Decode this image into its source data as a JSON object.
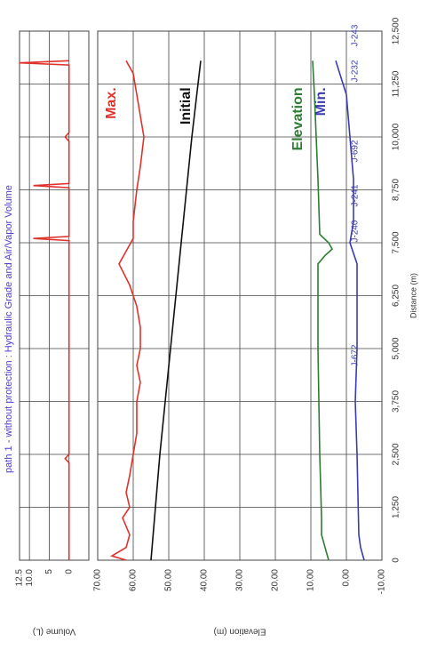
{
  "chart_data": [
    {
      "type": "line",
      "title": "path 1 - without protection : Hydraulic Grade and Air/Vapor Volume",
      "ylabel": "Volume (L)",
      "xlim": [
        0,
        12500
      ],
      "xticks": [
        0,
        1250,
        2500,
        3750,
        5000,
        6250,
        7500,
        8750,
        10000,
        11250,
        12500
      ],
      "ylim": [
        -5,
        12.5
      ],
      "yticks": [
        0,
        5,
        {
          "value": 10,
          "label": "10.0"
        },
        12.5
      ],
      "grid": true,
      "series": [
        {
          "color": "#e0322b",
          "x": [
            0,
            2300,
            2400,
            2500,
            7550,
            7600,
            7650,
            8800,
            8850,
            8900,
            9900,
            10000,
            10100,
            11700,
            11750,
            11800
          ],
          "values": [
            0,
            0,
            1,
            0,
            0,
            9,
            0,
            0,
            9,
            0,
            0,
            1,
            0,
            0,
            12.5,
            0
          ]
        }
      ]
    },
    {
      "type": "line",
      "ylabel": "Elevation (m)",
      "xlabel": "Distance (m)",
      "xlim": [
        0,
        12500
      ],
      "xticks": [
        0,
        {
          "value": 1250,
          "label": "1,250"
        },
        {
          "value": 2500,
          "label": "2,500"
        },
        {
          "value": 3750,
          "label": "3,750"
        },
        {
          "value": 5000,
          "label": "5,000"
        },
        {
          "value": 6250,
          "label": "6,250"
        },
        {
          "value": 7500,
          "label": "7,500"
        },
        {
          "value": 8750,
          "label": "8,750"
        },
        {
          "value": 10000,
          "label": "10,000"
        },
        {
          "value": 11250,
          "label": "11,250"
        },
        {
          "value": 12500,
          "label": "12,500"
        }
      ],
      "ylim": [
        -10,
        70
      ],
      "yticks": [
        {
          "value": -10,
          "label": "-10.00"
        },
        {
          "value": 0,
          "label": "0.00"
        },
        {
          "value": 10,
          "label": "10.00"
        },
        {
          "value": 20,
          "label": "20.00"
        },
        {
          "value": 30,
          "label": "30.00"
        },
        {
          "value": 40,
          "label": "40.00"
        },
        {
          "value": 50,
          "label": "50.00"
        },
        {
          "value": 60,
          "label": "60.00"
        },
        {
          "value": 70,
          "label": "70.00"
        }
      ],
      "grid": true,
      "series": [
        {
          "name": "Max.",
          "color": "#e0322b",
          "x": [
            0,
            100,
            300,
            600,
            1000,
            1250,
            1600,
            2000,
            2500,
            3000,
            3750,
            4200,
            4600,
            5000,
            5500,
            6000,
            6500,
            7000,
            7300,
            7600,
            8000,
            8750,
            9300,
            10000,
            10500,
            11000,
            11500,
            11800
          ],
          "values": [
            62,
            66,
            62,
            61,
            63,
            61,
            62,
            61,
            60,
            59,
            59,
            58,
            59,
            58,
            58,
            59,
            61,
            64,
            62,
            60,
            60,
            59,
            58,
            57,
            58,
            59,
            60,
            62
          ]
        },
        {
          "name": "Initial",
          "color": "#111111",
          "x": [
            0,
            2500,
            5000,
            7500,
            10000,
            11800
          ],
          "values": [
            55,
            52.5,
            49.5,
            46.5,
            43.5,
            41
          ]
        },
        {
          "name": "Elevation",
          "color": "#2e7d32",
          "x": [
            0,
            300,
            600,
            1000,
            2500,
            5000,
            7000,
            7200,
            7350,
            7500,
            7700,
            9000,
            10000,
            11000,
            11800
          ],
          "values": [
            5,
            6,
            7,
            7,
            7.5,
            8,
            8,
            6,
            4,
            5,
            7.5,
            8,
            8.5,
            9,
            9.5
          ]
        },
        {
          "name": "Min.",
          "color": "#3b3bb0",
          "x": [
            0,
            300,
            600,
            2500,
            3750,
            5000,
            6250,
            7000,
            7500,
            8000,
            9000,
            10000,
            11000,
            11800
          ],
          "values": [
            -5,
            -4,
            -3.5,
            -3,
            -2.5,
            -3,
            -3,
            -3,
            -1,
            -2,
            -2,
            -1,
            0,
            3
          ]
        }
      ],
      "annotations": [
        "J-672",
        "J-240",
        "J-241",
        "J-692",
        "J-232",
        "J-243"
      ]
    }
  ]
}
